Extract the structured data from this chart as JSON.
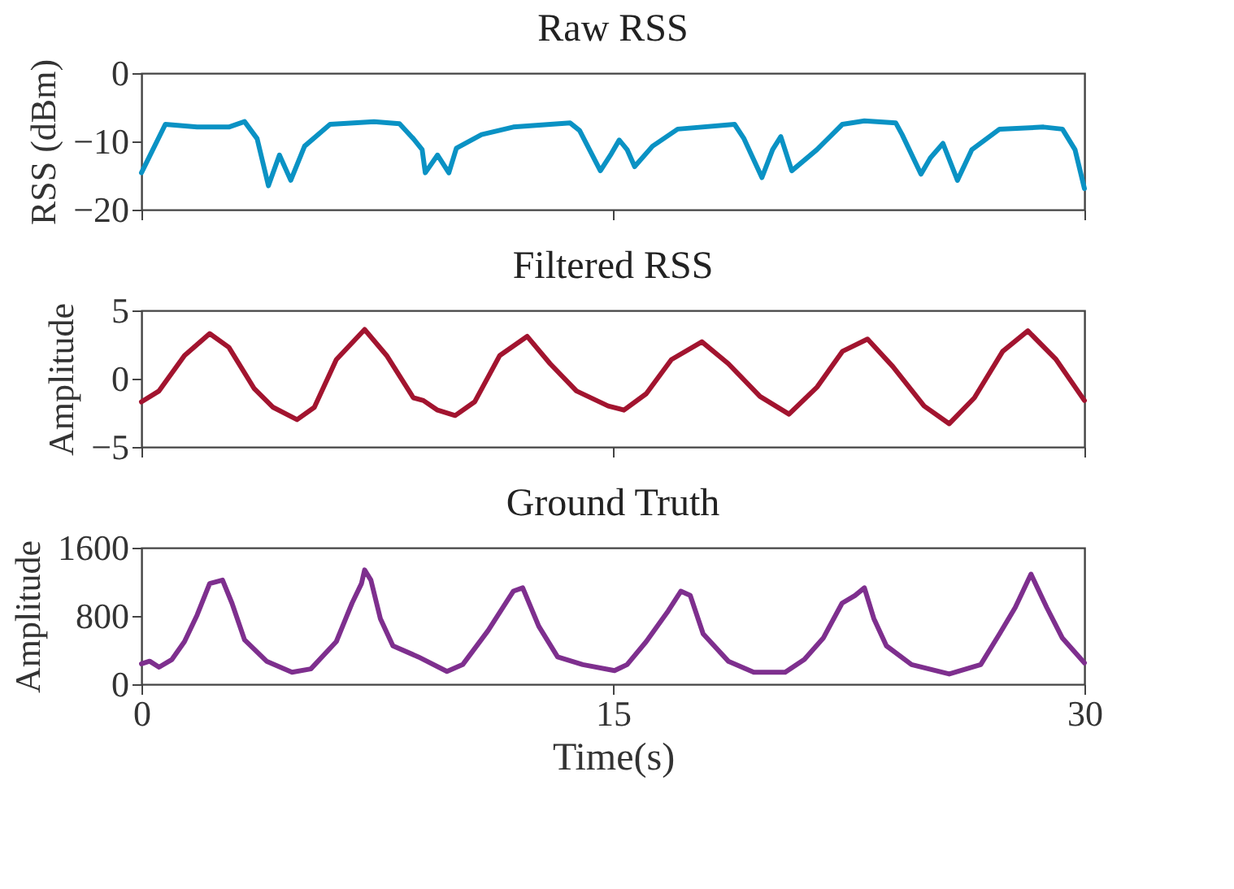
{
  "chart_data": [
    {
      "type": "line",
      "title": "Raw RSS",
      "ylabel": "RSS (dBm)",
      "xlim": [
        0,
        30
      ],
      "xticks": [
        0,
        15,
        30
      ],
      "ylim": [
        -20,
        0
      ],
      "yticks": [
        -20,
        -10,
        0
      ],
      "tick_labels": "y",
      "grid": false,
      "marker": "none",
      "line_style": "solid",
      "series": [
        {
          "color": "#0a92c4",
          "x": [
            0,
            0.76,
            1.77,
            2.78,
            3.28,
            3.68,
            4.04,
            4.39,
            4.75,
            5.19,
            6.0,
            7.4,
            8.21,
            8.65,
            8.93,
            9.03,
            9.42,
            9.78,
            10.02,
            10.82,
            11.83,
            13.64,
            13.94,
            14.6,
            14.95,
            15.2,
            15.45,
            15.69,
            16.26,
            17.06,
            18.87,
            19.17,
            19.74,
            20.08,
            20.34,
            20.69,
            21.49,
            22.3,
            23.0,
            24.0,
            24.2,
            24.8,
            25.1,
            25.5,
            25.96,
            26.42,
            27.3,
            28.7,
            29.3,
            29.7,
            30
          ],
          "values": [
            -14.6,
            -7.5,
            -7.9,
            -7.9,
            -7.1,
            -9.6,
            -16.5,
            -12.0,
            -15.7,
            -10.7,
            -7.5,
            -7.1,
            -7.4,
            -9.6,
            -11.2,
            -14.6,
            -12.0,
            -14.6,
            -11.0,
            -9.0,
            -7.9,
            -7.3,
            -8.4,
            -14.3,
            -11.8,
            -9.8,
            -11.2,
            -13.7,
            -10.7,
            -8.2,
            -7.5,
            -9.6,
            -15.3,
            -11.2,
            -9.3,
            -14.3,
            -11.2,
            -7.5,
            -7.0,
            -7.3,
            -9.0,
            -14.8,
            -12.4,
            -10.3,
            -15.7,
            -11.2,
            -8.2,
            -7.9,
            -8.2,
            -11.2,
            -16.9
          ]
        }
      ]
    },
    {
      "type": "line",
      "title": "Filtered RSS",
      "ylabel": "Amplitude",
      "xlim": [
        0,
        30
      ],
      "xticks": [
        0,
        15,
        30
      ],
      "ylim": [
        -5,
        5
      ],
      "yticks": [
        -5,
        0,
        5
      ],
      "tick_labels": "y",
      "grid": false,
      "marker": "none",
      "line_style": "solid",
      "series": [
        {
          "color": "#a2142f",
          "x": [
            0,
            0.56,
            1.37,
            2.17,
            2.78,
            3.58,
            4.19,
            4.95,
            5.5,
            6.2,
            7.1,
            7.8,
            8.65,
            8.97,
            9.42,
            9.98,
            10.6,
            11.4,
            12.27,
            13.0,
            13.84,
            14.85,
            15.35,
            16.06,
            16.86,
            17.83,
            18.67,
            19.68,
            20.6,
            21.5,
            22.3,
            23.1,
            23.9,
            24.9,
            25.7,
            26.5,
            27.4,
            28.2,
            29.1,
            30
          ],
          "values": [
            -1.7,
            -0.9,
            1.7,
            3.3,
            2.3,
            -0.7,
            -2.1,
            -3.0,
            -2.1,
            1.4,
            3.6,
            1.7,
            -1.4,
            -1.6,
            -2.3,
            -2.7,
            -1.7,
            1.7,
            3.1,
            1.1,
            -0.9,
            -2.0,
            -2.3,
            -1.1,
            1.4,
            2.7,
            1.1,
            -1.3,
            -2.6,
            -0.6,
            2.0,
            2.9,
            0.9,
            -2.0,
            -3.3,
            -1.4,
            2.0,
            3.5,
            1.4,
            -1.6
          ]
        }
      ]
    },
    {
      "type": "line",
      "title": "Ground Truth",
      "ylabel": "Amplitude",
      "xlabel": "Time(s)",
      "xlim": [
        0,
        30
      ],
      "xticks": [
        0,
        15,
        30
      ],
      "ylim": [
        0,
        1600
      ],
      "yticks": [
        0,
        800,
        1600
      ],
      "grid": false,
      "marker": "none",
      "line_style": "solid",
      "series": [
        {
          "color": "#7e2f8e",
          "x": [
            0,
            0.26,
            0.56,
            0.97,
            1.37,
            1.77,
            2.17,
            2.58,
            2.88,
            3.28,
            3.98,
            4.79,
            5.39,
            6.2,
            6.7,
            7.0,
            7.1,
            7.3,
            7.6,
            8.0,
            8.81,
            9.72,
            10.22,
            11.03,
            11.83,
            12.13,
            12.64,
            13.24,
            14.04,
            15.05,
            15.45,
            16.06,
            16.76,
            17.16,
            17.46,
            17.87,
            18.67,
            19.48,
            20.48,
            21.09,
            21.69,
            22.29,
            22.7,
            23.0,
            23.3,
            23.7,
            24.5,
            25.7,
            26.7,
            27.3,
            27.8,
            28.3,
            28.8,
            29.3,
            30
          ],
          "values": [
            240,
            270,
            200,
            290,
            500,
            810,
            1180,
            1220,
            950,
            520,
            270,
            140,
            180,
            500,
            950,
            1180,
            1340,
            1220,
            770,
            450,
            320,
            150,
            230,
            630,
            1090,
            1130,
            680,
            320,
            230,
            160,
            230,
            500,
            860,
            1090,
            1040,
            590,
            270,
            140,
            140,
            290,
            540,
            950,
            1040,
            1130,
            770,
            450,
            230,
            120,
            230,
            590,
            900,
            1290,
            900,
            540,
            250
          ]
        }
      ]
    }
  ]
}
